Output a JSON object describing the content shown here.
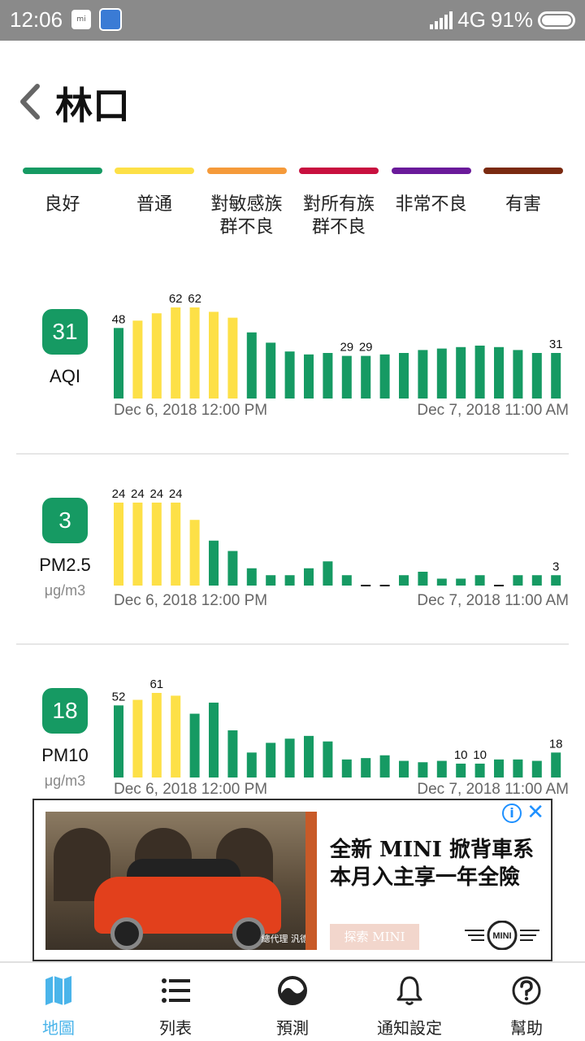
{
  "status_bar": {
    "time": "12:06",
    "network": "4G",
    "battery": "91%",
    "mi_icon": "mi"
  },
  "header": {
    "title": "林口"
  },
  "legend": [
    {
      "label": "良好",
      "color": "#169a63"
    },
    {
      "label": "普通",
      "color": "#fde047"
    },
    {
      "label": "對敏感族\n群不良",
      "color": "#f59a3a"
    },
    {
      "label": "對所有族\n群不良",
      "color": "#c8103f"
    },
    {
      "label": "非常不良",
      "color": "#6a1a9a"
    },
    {
      "label": "有害",
      "color": "#7a2a10"
    }
  ],
  "sections": [
    {
      "badge": "31",
      "name": "AQI",
      "unit": ""
    },
    {
      "badge": "3",
      "name": "PM2.5",
      "unit": "μg/m3"
    },
    {
      "badge": "18",
      "name": "PM10",
      "unit": "μg/m3"
    }
  ],
  "chart_data": [
    {
      "type": "bar",
      "metric": "AQI",
      "x_start": "Dec 6, 2018 12:00 PM",
      "x_end": "Dec 7, 2018 11:00 AM",
      "values": [
        48,
        53,
        58,
        62,
        62,
        59,
        55,
        45,
        38,
        32,
        30,
        31,
        29,
        29,
        30,
        31,
        33,
        34,
        35,
        36,
        35,
        33,
        31,
        31
      ],
      "labels": {
        "0": "48",
        "3": "62",
        "4": "62",
        "12": "29",
        "13": "29",
        "23": "31"
      },
      "colors": [
        "green",
        "yellow",
        "yellow",
        "yellow",
        "yellow",
        "yellow",
        "yellow",
        "green",
        "green",
        "green",
        "green",
        "green",
        "green",
        "green",
        "green",
        "green",
        "green",
        "green",
        "green",
        "green",
        "green",
        "green",
        "green",
        "green"
      ]
    },
    {
      "type": "bar",
      "metric": "PM2.5",
      "x_start": "Dec 6, 2018 12:00 PM",
      "x_end": "Dec 7, 2018 11:00 AM",
      "values": [
        24,
        24,
        24,
        24,
        19,
        13,
        10,
        5,
        3,
        3,
        5,
        7,
        3,
        null,
        null,
        3,
        4,
        2,
        2,
        3,
        null,
        3,
        3,
        3
      ],
      "labels": {
        "0": "24",
        "1": "24",
        "2": "24",
        "3": "24",
        "23": "3"
      },
      "colors": [
        "yellow",
        "yellow",
        "yellow",
        "yellow",
        "yellow",
        "green",
        "green",
        "green",
        "green",
        "green",
        "green",
        "green",
        "green",
        "green",
        "green",
        "green",
        "green",
        "green",
        "green",
        "green",
        "green",
        "green",
        "green",
        "green"
      ]
    },
    {
      "type": "bar",
      "metric": "PM10",
      "x_start": "Dec 6, 2018 12:00 PM",
      "x_end": "Dec 7, 2018 11:00 AM",
      "values": [
        52,
        56,
        61,
        59,
        46,
        54,
        34,
        18,
        25,
        28,
        30,
        26,
        13,
        14,
        16,
        12,
        11,
        12,
        10,
        10,
        13,
        13,
        12,
        18
      ],
      "labels": {
        "0": "52",
        "2": "61",
        "18": "10",
        "19": "10",
        "23": "18"
      },
      "colors": [
        "green",
        "yellow",
        "yellow",
        "yellow",
        "green",
        "green",
        "green",
        "green",
        "green",
        "green",
        "green",
        "green",
        "green",
        "green",
        "green",
        "green",
        "green",
        "green",
        "green",
        "green",
        "green",
        "green",
        "green",
        "green"
      ]
    }
  ],
  "ad": {
    "headline_1": "全新 MINI 掀背車系",
    "headline_2": "本月入主享一年全險",
    "cta": "探索 MINI",
    "brand": "MINI",
    "dealer": "總代理 汎德",
    "info": "i",
    "close": "✕"
  },
  "nav": [
    {
      "label": "地圖",
      "icon": "map-icon",
      "active": true
    },
    {
      "label": "列表",
      "icon": "list-icon",
      "active": false
    },
    {
      "label": "預測",
      "icon": "forecast-icon",
      "active": false
    },
    {
      "label": "通知設定",
      "icon": "bell-icon",
      "active": false
    },
    {
      "label": "幫助",
      "icon": "help-icon",
      "active": false
    }
  ],
  "colors": {
    "green": "#169a63",
    "yellow": "#fde047",
    "accent": "#4ab4ea"
  }
}
